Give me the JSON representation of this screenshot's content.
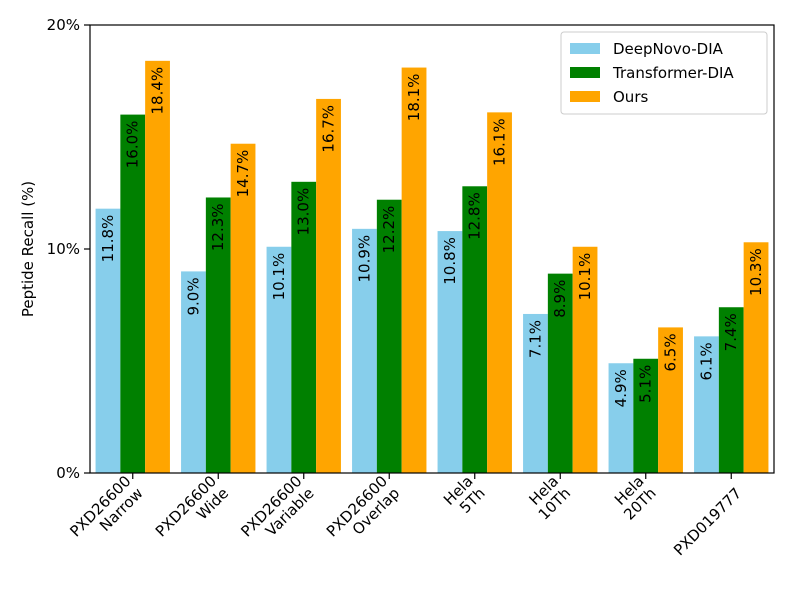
{
  "chart_data": {
    "type": "bar",
    "ylabel": "Peptide Recall (%)",
    "xlabel": "",
    "title": "",
    "ylim": [
      0,
      20
    ],
    "yticks": [
      0,
      10,
      20
    ],
    "ytick_labels": [
      "0%",
      "10%",
      "20%"
    ],
    "categories": [
      [
        "PXD26600",
        "Narrow"
      ],
      [
        "PXD26600",
        "Wide"
      ],
      [
        "PXD26600",
        "Variable"
      ],
      [
        "PXD26600",
        "Overlap"
      ],
      [
        "Hela",
        "5Th"
      ],
      [
        "Hela",
        "10Th"
      ],
      [
        "Hela",
        "20Th"
      ],
      [
        "PXD019777"
      ]
    ],
    "series": [
      {
        "name": "DeepNovo-DIA",
        "color": "#87ceeb",
        "values": [
          11.8,
          9.0,
          10.1,
          10.9,
          10.8,
          7.1,
          4.9,
          6.1
        ],
        "labels": [
          "11.8%",
          "9.0%",
          "10.1%",
          "10.9%",
          "10.8%",
          "7.1%",
          "4.9%",
          "6.1%"
        ]
      },
      {
        "name": "Transformer-DIA",
        "color": "#008000",
        "values": [
          16.0,
          12.3,
          13.0,
          12.2,
          12.8,
          8.9,
          5.1,
          7.4
        ],
        "labels": [
          "16.0%",
          "12.3%",
          "13.0%",
          "12.2%",
          "12.8%",
          "8.9%",
          "5.1%",
          "7.4%"
        ]
      },
      {
        "name": "Ours",
        "color": "#ffa500",
        "values": [
          18.4,
          14.7,
          16.7,
          18.1,
          16.1,
          10.1,
          6.5,
          10.3
        ],
        "labels": [
          "18.4%",
          "14.7%",
          "16.7%",
          "18.1%",
          "16.1%",
          "10.1%",
          "6.5%",
          "10.3%"
        ]
      }
    ],
    "legend_position": "top-right",
    "grid": false
  }
}
